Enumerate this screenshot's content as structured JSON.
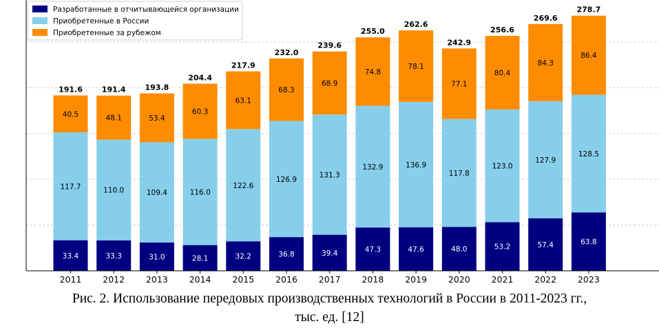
{
  "chart_data": {
    "type": "bar",
    "stacked": true,
    "categories": [
      "2011",
      "2012",
      "2013",
      "2014",
      "2015",
      "2016",
      "2017",
      "2018",
      "2019",
      "2020",
      "2021",
      "2022",
      "2023"
    ],
    "series": [
      {
        "name": "Разработанные в отчитывающейся организации",
        "color": "#000080",
        "values": [
          33.4,
          33.3,
          31.0,
          28.1,
          32.2,
          36.8,
          39.4,
          47.3,
          47.6,
          48.0,
          53.2,
          57.4,
          63.8
        ],
        "labels": [
          "33.4",
          "33.3",
          "31.0",
          "28.1",
          "32.2",
          "36.8",
          "39.4",
          "47.3",
          "47.6",
          "48.0",
          "53.2",
          "57.4",
          "63.8"
        ]
      },
      {
        "name": "Приобретенные в России",
        "color": "#87ceeb",
        "values": [
          117.7,
          110.0,
          109.4,
          116.0,
          122.6,
          126.9,
          131.3,
          132.9,
          136.9,
          117.8,
          123.0,
          127.9,
          128.5
        ],
        "labels": [
          "117.7",
          "110.0",
          "109.4",
          "116.0",
          "122.6",
          "126.9",
          "131.3",
          "132.9",
          "136.9",
          "117.8",
          "123.0",
          "127.9",
          "128.5"
        ]
      },
      {
        "name": "Приобретенные за рубежом",
        "color": "#ff8c00",
        "values": [
          40.5,
          48.1,
          53.4,
          60.3,
          63.1,
          68.3,
          68.9,
          74.8,
          78.1,
          77.1,
          80.4,
          84.3,
          86.4
        ],
        "labels": [
          "40.5",
          "48.1",
          "53.4",
          "60.3",
          "63.1",
          "68.3",
          "68.9",
          "74.8",
          "78.1",
          "77.1",
          "80.4",
          "84.3",
          "86.4"
        ]
      }
    ],
    "totals": [
      191.6,
      191.4,
      193.8,
      204.4,
      217.9,
      232.0,
      239.6,
      255.0,
      262.6,
      242.9,
      256.6,
      269.6,
      278.7
    ],
    "total_labels": [
      "191.6",
      "191.4",
      "193.8",
      "204.4",
      "217.9",
      "232.0",
      "239.6",
      "255.0",
      "262.6",
      "242.9",
      "256.6",
      "269.6",
      "278.7"
    ],
    "ylim": [
      0,
      280
    ],
    "grid": true,
    "legend": "top-left"
  },
  "caption": {
    "line1": "Рис. 2. Использование передовых производственных технологий в России в 2011-2023 гг.,",
    "line2": "тыс. ед. [12]"
  }
}
